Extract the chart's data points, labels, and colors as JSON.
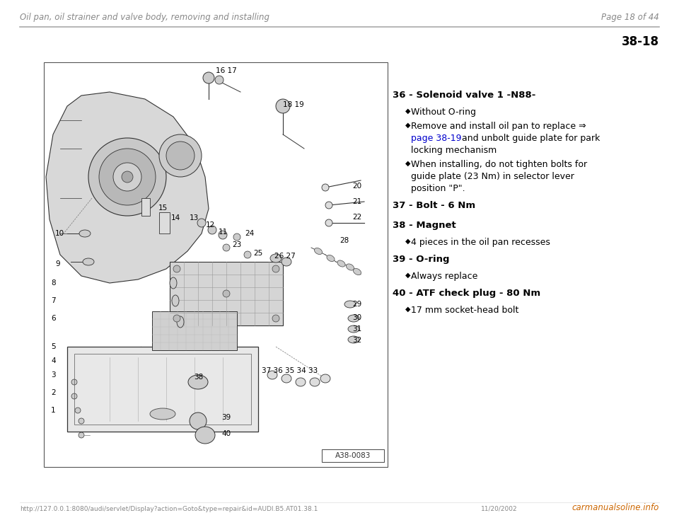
{
  "bg_color": "#ffffff",
  "header_left": "Oil pan, oil strainer and valve body, removing and installing",
  "header_right": "Page 18 of 44",
  "header_line_color": "#aaaaaa",
  "page_number": "38-18",
  "footer_left": "http://127.0.0.1:8080/audi/servlet/Display?action=Goto&type=repair&id=AUDI.B5.AT01.38.1",
  "footer_right": "11/20/2002",
  "footer_brand": "carmanualsoline.info",
  "diagram_label": "A38-0083",
  "text_items": [
    {
      "number": "36",
      "title": " - Solenoid valve 1 -N88-",
      "bullets": [
        {
          "type": "plain",
          "text": "Without O-ring"
        },
        {
          "type": "mixed",
          "parts": [
            {
              "text": "Remove and install oil pan to replace ⇒",
              "color": "#000000"
            },
            {
              "text": "\npage 38-19",
              "color": "#0000cc"
            },
            {
              "text": " and unbolt guide plate for park\nlocking mechanism",
              "color": "#000000"
            }
          ]
        },
        {
          "type": "plain",
          "text": "When installing, do not tighten bolts for\nguide plate (23 Nm) in selector lever\nposition \"P\"."
        }
      ]
    },
    {
      "number": "37",
      "title": " - Bolt - 6 Nm",
      "bullets": []
    },
    {
      "number": "38",
      "title": " - Magnet",
      "bullets": [
        {
          "type": "plain",
          "text": "4 pieces in the oil pan recesses"
        }
      ]
    },
    {
      "number": "39",
      "title": " - O-ring",
      "bullets": [
        {
          "type": "plain",
          "text": "Always replace"
        }
      ]
    },
    {
      "number": "40",
      "title": " - ATF check plug - 80 Nm",
      "bullets": [
        {
          "type": "plain",
          "text": "17 mm socket-head bolt"
        }
      ]
    }
  ]
}
